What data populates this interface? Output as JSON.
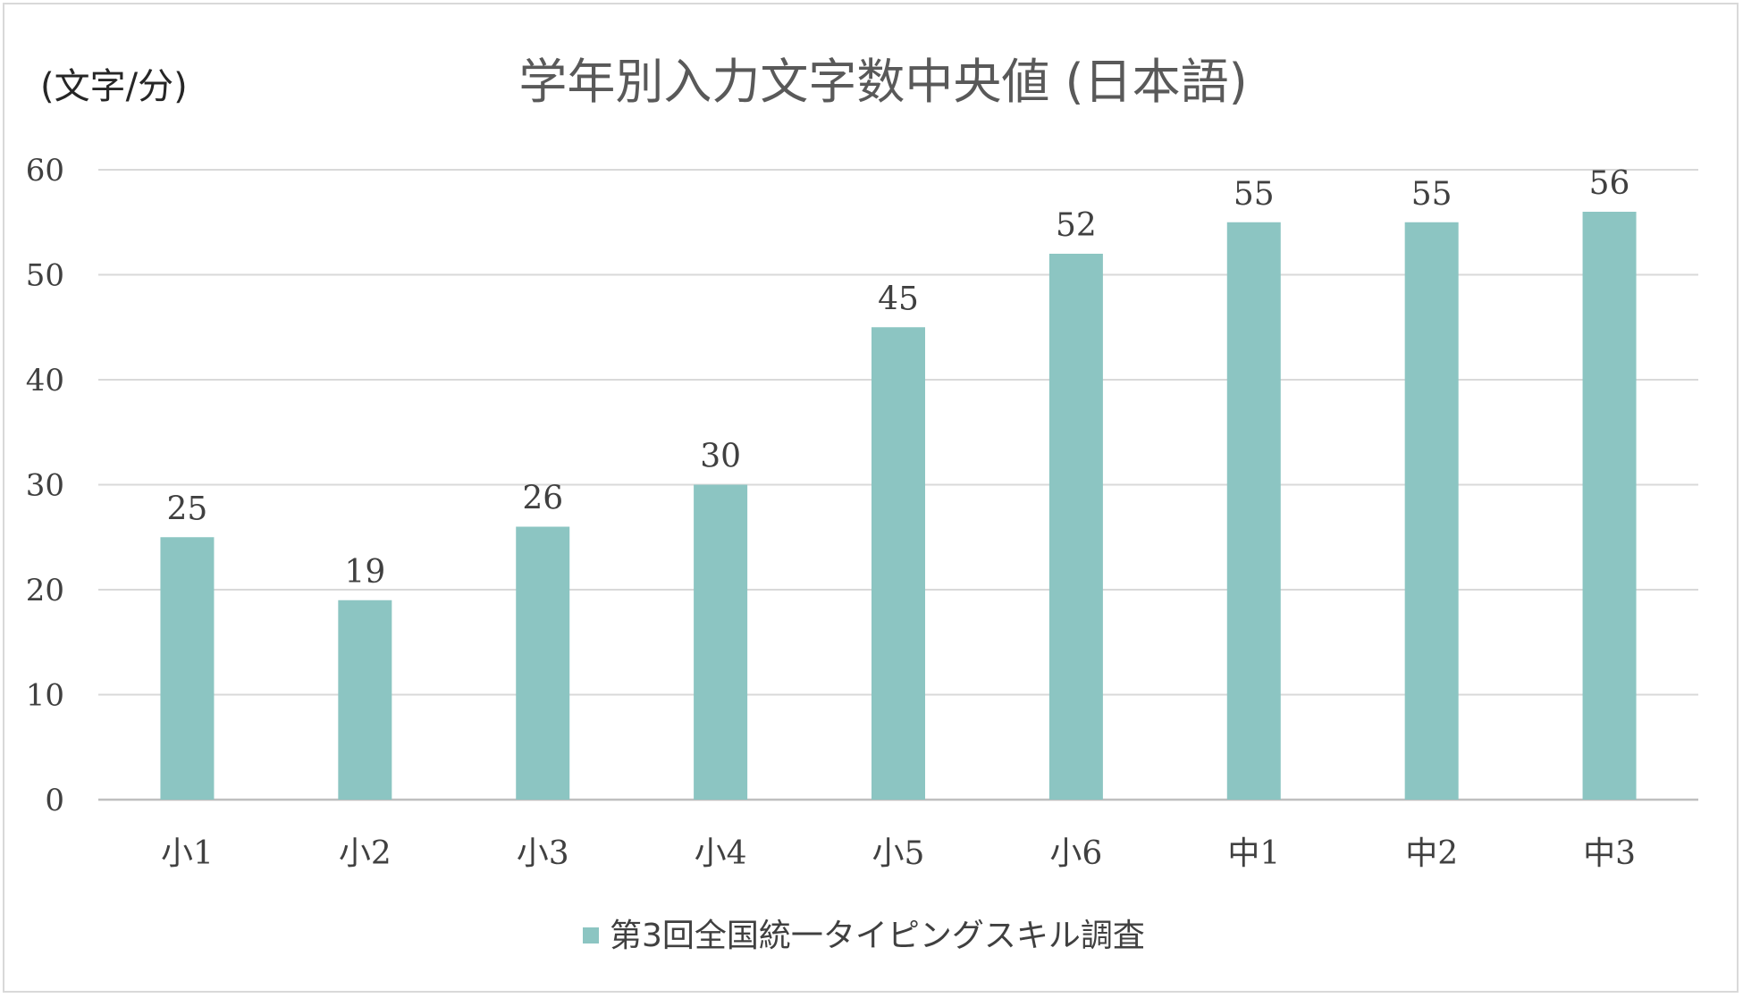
{
  "chart_data": {
    "type": "bar",
    "title": "学年別入力文字数中央値 (日本語)",
    "ylabel": "(文字/分)",
    "xlabel": "",
    "categories": [
      "小1",
      "小2",
      "小3",
      "小4",
      "小5",
      "小6",
      "中1",
      "中2",
      "中3"
    ],
    "series": [
      {
        "name": "第3回全国統一タイピングスキル調査",
        "values": [
          25,
          19,
          26,
          30,
          45,
          52,
          55,
          55,
          56
        ],
        "color": "#8cc5c2"
      }
    ],
    "ylim": [
      0,
      60
    ],
    "yticks": [
      0,
      10,
      20,
      30,
      40,
      50,
      60
    ],
    "grid": true,
    "data_labels": true,
    "legend_position": "bottom"
  },
  "colors": {
    "bar": "#8cc5c2",
    "grid": "#d9d9d9",
    "axis": "#bfbfbf"
  }
}
